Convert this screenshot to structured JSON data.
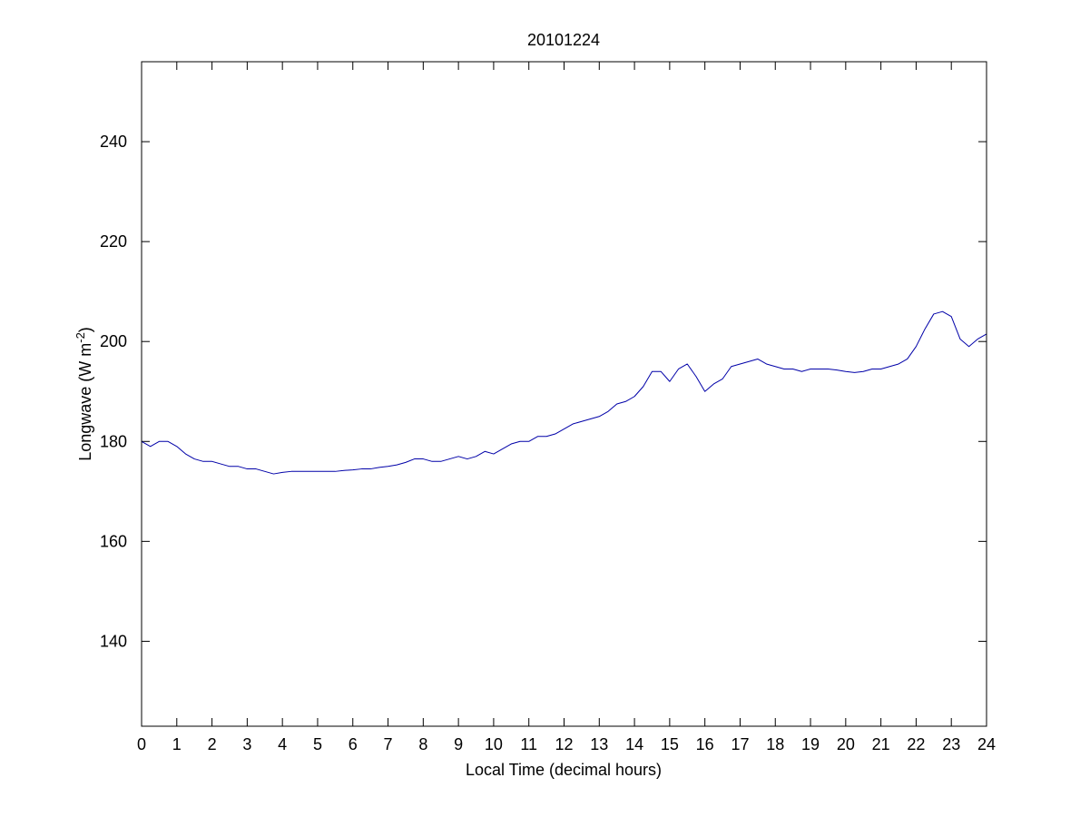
{
  "chart_data": {
    "type": "line",
    "title": "20101224",
    "xlabel": "Local Time (decimal hours)",
    "ylabel": {
      "prefix": "Longwave (W m",
      "superscript": "-2",
      "suffix": ")"
    },
    "xlim": [
      0,
      24
    ],
    "ylim": [
      123,
      256
    ],
    "xticks": [
      0,
      1,
      2,
      3,
      4,
      5,
      6,
      7,
      8,
      9,
      10,
      11,
      12,
      13,
      14,
      15,
      16,
      17,
      18,
      19,
      20,
      21,
      22,
      23,
      24
    ],
    "yticks": [
      140,
      160,
      180,
      200,
      220,
      240
    ],
    "grid": false,
    "series": [
      {
        "color": "#0000a8",
        "x": [
          0.0,
          0.25,
          0.5,
          0.75,
          1.0,
          1.25,
          1.5,
          1.75,
          2.0,
          2.25,
          2.5,
          2.75,
          3.0,
          3.25,
          3.5,
          3.75,
          4.0,
          4.25,
          4.5,
          4.75,
          5.0,
          5.25,
          5.5,
          5.75,
          6.0,
          6.25,
          6.5,
          6.75,
          7.0,
          7.25,
          7.5,
          7.75,
          8.0,
          8.25,
          8.5,
          8.75,
          9.0,
          9.25,
          9.5,
          9.75,
          10.0,
          10.25,
          10.5,
          10.75,
          11.0,
          11.25,
          11.5,
          11.75,
          12.0,
          12.25,
          12.5,
          12.75,
          13.0,
          13.25,
          13.5,
          13.75,
          14.0,
          14.25,
          14.5,
          14.75,
          15.0,
          15.25,
          15.5,
          15.75,
          16.0,
          16.25,
          16.5,
          16.75,
          17.0,
          17.25,
          17.5,
          17.75,
          18.0,
          18.25,
          18.5,
          18.75,
          19.0,
          19.25,
          19.5,
          19.75,
          20.0,
          20.25,
          20.5,
          20.75,
          21.0,
          21.25,
          21.5,
          21.75,
          22.0,
          22.25,
          22.5,
          22.75,
          23.0,
          23.25,
          23.5,
          23.75,
          24.0
        ],
        "y": [
          180.0,
          179.0,
          180.0,
          180.0,
          179.0,
          177.5,
          176.5,
          176.0,
          176.0,
          175.5,
          175.0,
          175.0,
          174.5,
          174.5,
          174.0,
          173.5,
          173.8,
          174.0,
          174.0,
          174.0,
          174.0,
          174.0,
          174.0,
          174.2,
          174.3,
          174.5,
          174.5,
          174.8,
          175.0,
          175.3,
          175.8,
          176.5,
          176.5,
          176.0,
          176.0,
          176.5,
          177.0,
          176.5,
          177.0,
          178.0,
          177.5,
          178.5,
          179.5,
          180.0,
          180.0,
          181.0,
          181.0,
          181.5,
          182.5,
          183.5,
          184.0,
          184.5,
          185.0,
          186.0,
          187.5,
          188.0,
          189.0,
          191.0,
          194.0,
          194.0,
          192.0,
          194.5,
          195.5,
          193.0,
          190.0,
          191.5,
          192.5,
          195.0,
          195.5,
          196.0,
          196.5,
          195.5,
          195.0,
          194.5,
          194.5,
          194.0,
          194.5,
          194.5,
          194.5,
          194.3,
          194.0,
          193.8,
          194.0,
          194.5,
          194.5,
          195.0,
          195.5,
          196.5,
          199.0,
          202.5,
          205.5,
          206.0,
          205.0,
          200.5,
          199.0,
          200.5,
          201.5
        ]
      }
    ]
  }
}
